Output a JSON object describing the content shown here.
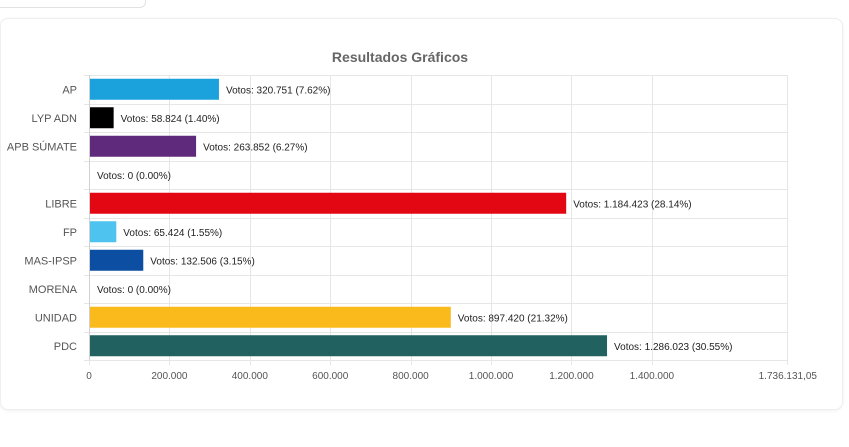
{
  "chart_data": {
    "type": "bar",
    "orientation": "horizontal",
    "title": "Resultados Gráficos",
    "categories": [
      "AP",
      "LYP ADN",
      "APB SÚMATE",
      "",
      "LIBRE",
      "FP",
      "MAS-IPSP",
      "MORENA",
      "UNIDAD",
      "PDC"
    ],
    "values": [
      320751,
      58824,
      263852,
      0,
      1184423,
      65424,
      132506,
      0,
      897420,
      1286023
    ],
    "data_labels": [
      "Votos: 320.751 (7.62%)",
      "Votos: 58.824 (1.40%)",
      "Votos: 263.852 (6.27%)",
      "Votos: 0 (0.00%)",
      "Votos: 1.184.423 (28.14%)",
      "Votos: 65.424 (1.55%)",
      "Votos: 132.506 (3.15%)",
      "Votos: 0 (0.00%)",
      "Votos: 897.420 (21.32%)",
      "Votos: 1.286.023 (30.55%)"
    ],
    "colors": [
      "#1ba1dc",
      "#000000",
      "#5f2a7c",
      "#cccccc",
      "#e30613",
      "#4fc3ef",
      "#0b4ea2",
      "#8b1a1a",
      "#fbba1c",
      "#21615f"
    ],
    "xlim": [
      0,
      1736131.05
    ],
    "xticks": [
      0,
      200000,
      400000,
      600000,
      800000,
      1000000,
      1200000,
      1400000,
      1736131.05
    ],
    "xtick_labels": [
      "0",
      "200.000",
      "400.000",
      "600.000",
      "800.000",
      "1.000.000",
      "1.200.000",
      "1.400.000",
      "1.736.131,05"
    ],
    "grid": true
  }
}
